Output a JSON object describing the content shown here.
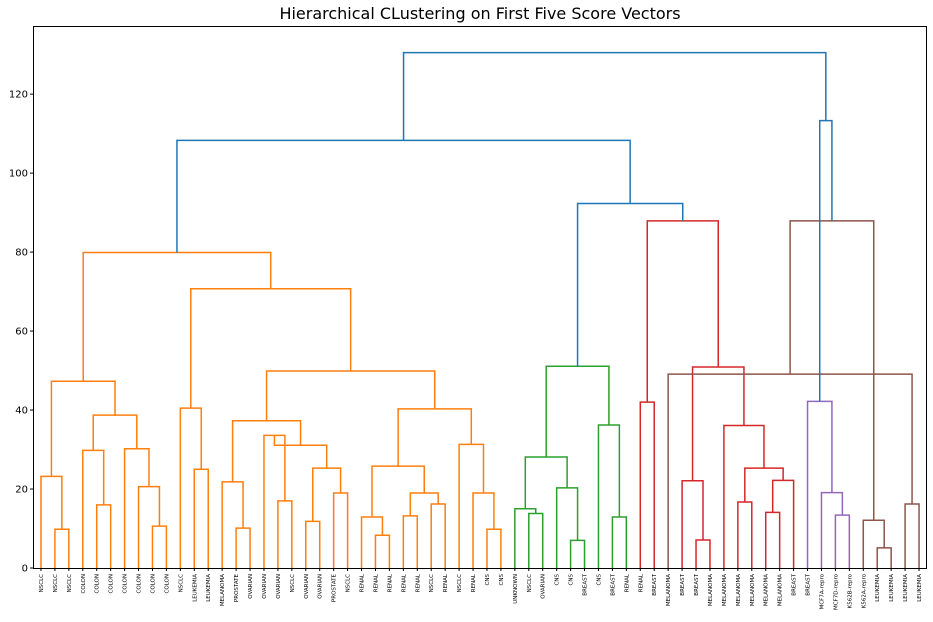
{
  "chart_data": {
    "type": "dendrogram",
    "title": "Hierarchical CLustering on First Five Score Vectors",
    "xlabel": "",
    "ylabel": "",
    "ylim": [
      0,
      137
    ],
    "yticks": [
      0,
      20,
      40,
      60,
      80,
      100,
      120
    ],
    "grid": false,
    "legend": "none",
    "colors": {
      "C0": "#1f77b4",
      "C1": "#ff7f0e",
      "C2": "#2ca02c",
      "C3": "#d62728",
      "C4": "#9467bd",
      "C5": "#8c564b"
    },
    "leaves": [
      "NSCLC",
      "NSCLC",
      "NSCLC",
      "COLON",
      "COLON",
      "COLON",
      "COLON",
      "COLON",
      "COLON",
      "COLON",
      "NSCLC",
      "LEUKEMIA",
      "LEUKEMIA",
      "MELANOMA",
      "PROSTATE",
      "OVARIAN",
      "OVARIAN",
      "OVARIAN",
      "NSCLC",
      "OVARIAN",
      "OVARIAN",
      "PROSTATE",
      "NSCLC",
      "RENAL",
      "RENAL",
      "RENAL",
      "RENAL",
      "RENAL",
      "NSCLC",
      "RENAL",
      "NSCLC",
      "RENAL",
      "CNS",
      "CNS",
      "UNKNOWN",
      "NSCLC",
      "OVARIAN",
      "CNS",
      "CNS",
      "BREAST",
      "CNS",
      "BREAST",
      "RENAL",
      "RENAL",
      "BREAST",
      "MELANOMA",
      "BREAST",
      "BREAST",
      "MELANOMA",
      "MELANOMA",
      "MELANOMA",
      "MELANOMA",
      "MELANOMA",
      "MELANOMA",
      "BREAST",
      "BREAST",
      "MCF7A-repro",
      "MCF7D-repro",
      "K562B-repro",
      "K562A-repro",
      "LEUKEMIA",
      "LEUKEMIA",
      "LEUKEMIA",
      "LEUKEMIA"
    ],
    "merges": [
      {
        "l": 1,
        "r": 2,
        "h": 9.8,
        "c": "C1"
      },
      {
        "l": 0,
        "r": 64,
        "h": 23.2,
        "c": "C1"
      },
      {
        "l": 4,
        "r": 5,
        "h": 16.0,
        "c": "C1"
      },
      {
        "l": 3,
        "r": 66,
        "h": 29.8,
        "c": "C1"
      },
      {
        "l": 8,
        "r": 9,
        "h": 10.6,
        "c": "C1"
      },
      {
        "l": 7,
        "r": 68,
        "h": 20.6,
        "c": "C1"
      },
      {
        "l": 6,
        "r": 69,
        "h": 30.2,
        "c": "C1"
      },
      {
        "l": 67,
        "r": 70,
        "h": 38.7,
        "c": "C1"
      },
      {
        "l": 65,
        "r": 71,
        "h": 47.3,
        "c": "C1"
      },
      {
        "l": 11,
        "r": 12,
        "h": 25.0,
        "c": "C1"
      },
      {
        "l": 10,
        "r": 73,
        "h": 40.5,
        "c": "C1"
      },
      {
        "l": 14,
        "r": 15,
        "h": 10.1,
        "c": "C1"
      },
      {
        "l": 13,
        "r": 75,
        "h": 21.8,
        "c": "C1"
      },
      {
        "l": 17,
        "r": 18,
        "h": 17.0,
        "c": "C1"
      },
      {
        "l": 16,
        "r": 77,
        "h": 33.6,
        "c": "C1"
      },
      {
        "l": 19,
        "r": 20,
        "h": 11.8,
        "c": "C1"
      },
      {
        "l": 21,
        "r": 22,
        "h": 19.0,
        "c": "C1"
      },
      {
        "l": 79,
        "r": 80,
        "h": 25.3,
        "c": "C1"
      },
      {
        "l": 78,
        "r": 81,
        "h": 31.1,
        "c": "C1"
      },
      {
        "l": 76,
        "r": 82,
        "h": 37.3,
        "c": "C1"
      },
      {
        "l": 24,
        "r": 25,
        "h": 8.3,
        "c": "C1"
      },
      {
        "l": 23,
        "r": 84,
        "h": 12.9,
        "c": "C1"
      },
      {
        "l": 26,
        "r": 27,
        "h": 13.2,
        "c": "C1"
      },
      {
        "l": 28,
        "r": 29,
        "h": 16.2,
        "c": "C1"
      },
      {
        "l": 86,
        "r": 87,
        "h": 19.0,
        "c": "C1"
      },
      {
        "l": 85,
        "r": 88,
        "h": 25.8,
        "c": "C1"
      },
      {
        "l": 32,
        "r": 33,
        "h": 9.8,
        "c": "C1"
      },
      {
        "l": 31,
        "r": 90,
        "h": 19.0,
        "c": "C1"
      },
      {
        "l": 30,
        "r": 91,
        "h": 31.3,
        "c": "C1"
      },
      {
        "l": 89,
        "r": 92,
        "h": 40.3,
        "c": "C1"
      },
      {
        "l": 83,
        "r": 93,
        "h": 49.9,
        "c": "C1"
      },
      {
        "l": 74,
        "r": 94,
        "h": 70.7,
        "c": "C1"
      },
      {
        "l": 72,
        "r": 95,
        "h": 79.9,
        "c": "C1"
      },
      {
        "l": 35,
        "r": 36,
        "h": 13.8,
        "c": "C2"
      },
      {
        "l": 34,
        "r": 97,
        "h": 15.0,
        "c": "C2"
      },
      {
        "l": 38,
        "r": 39,
        "h": 7.0,
        "c": "C2"
      },
      {
        "l": 37,
        "r": 99,
        "h": 20.3,
        "c": "C2"
      },
      {
        "l": 98,
        "r": 100,
        "h": 28.1,
        "c": "C2"
      },
      {
        "l": 41,
        "r": 42,
        "h": 12.9,
        "c": "C2"
      },
      {
        "l": 40,
        "r": 102,
        "h": 36.2,
        "c": "C2"
      },
      {
        "l": 101,
        "r": 103,
        "h": 51.1,
        "c": "C2"
      },
      {
        "l": 47,
        "r": 48,
        "h": 7.1,
        "c": "C3"
      },
      {
        "l": 46,
        "r": 105,
        "h": 22.1,
        "c": "C3"
      },
      {
        "l": 50,
        "r": 51,
        "h": 16.7,
        "c": "C3"
      },
      {
        "l": 52,
        "r": 53,
        "h": 14.1,
        "c": "C3"
      },
      {
        "l": 54,
        "r": 108,
        "h": 22.2,
        "c": "C3"
      },
      {
        "l": 107,
        "r": 109,
        "h": 25.3,
        "c": "C3"
      },
      {
        "l": 49,
        "r": 110,
        "h": 36.1,
        "c": "C3"
      },
      {
        "l": 106,
        "r": 111,
        "h": 50.9,
        "c": "C3"
      },
      {
        "l": 43,
        "r": 44,
        "h": 42.0,
        "c": "C3"
      },
      {
        "l": 113,
        "r": 112,
        "h": 87.9,
        "c": "C3"
      },
      {
        "l": 104,
        "r": 114,
        "h": 92.3,
        "c": "C0"
      },
      {
        "l": 96,
        "r": 115,
        "h": 108.3,
        "c": "C0"
      },
      {
        "l": 57,
        "r": 58,
        "h": 13.4,
        "c": "C4"
      },
      {
        "l": 56,
        "r": 117,
        "h": 19.1,
        "c": "C4"
      },
      {
        "l": 55,
        "r": 118,
        "h": 42.2,
        "c": "C4"
      },
      {
        "l": 60,
        "r": 61,
        "h": 5.1,
        "c": "C5"
      },
      {
        "l": 59,
        "r": 120,
        "h": 12.1,
        "c": "C5"
      },
      {
        "l": 62,
        "r": 63,
        "h": 16.2,
        "c": "C5"
      },
      {
        "l": 45,
        "r": 122,
        "h": 49.1,
        "c": "C5"
      },
      {
        "l": 121,
        "r": 123,
        "h": 87.9,
        "c": "C5"
      },
      {
        "l": 119,
        "r": 124,
        "h": 113.3,
        "c": "C0"
      },
      {
        "l": 116,
        "r": 125,
        "h": 130.5,
        "c": "C0"
      }
    ]
  }
}
